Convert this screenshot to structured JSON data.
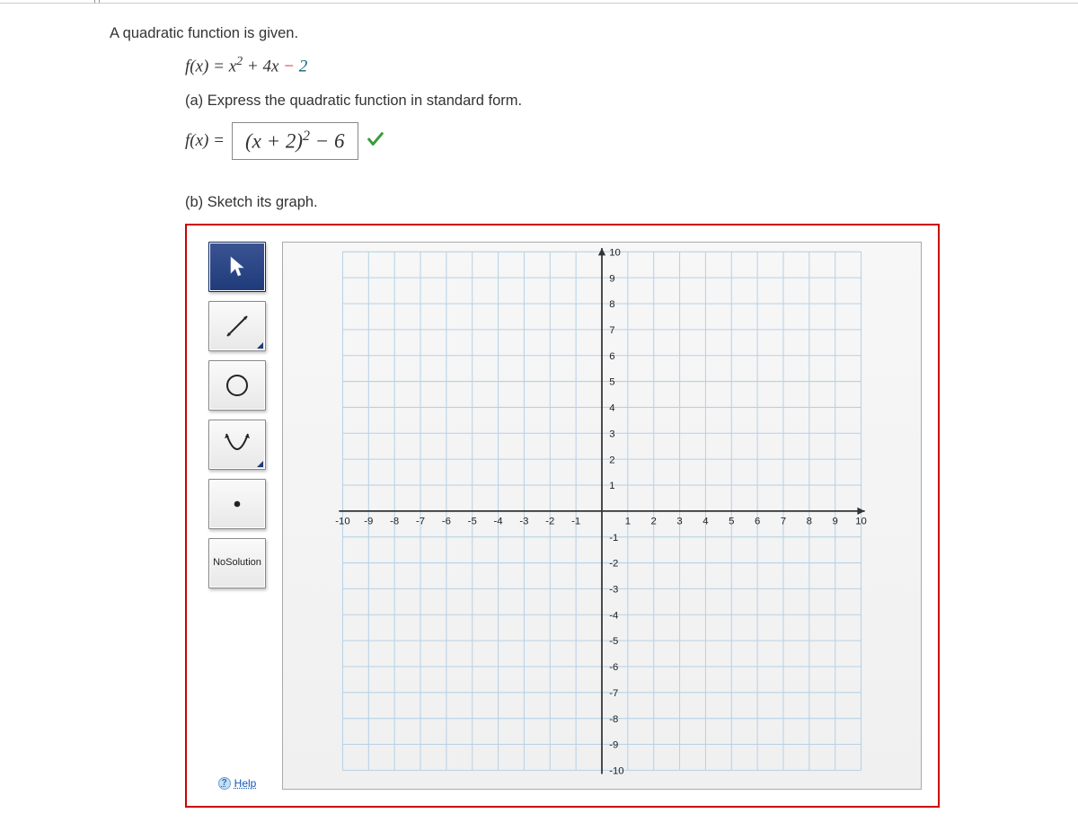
{
  "question": {
    "title": "A quadratic function is given.",
    "equation": {
      "lhs": "f(x) = ",
      "var": "x",
      "exp": "2",
      "linear": " + 4x ",
      "minus": "−",
      "constant": " 2"
    },
    "part_a_label": "(a) Express the quadratic function in standard form.",
    "part_a_answer_prefix": "f(x) = ",
    "part_a_answer": "(x + 2)² − 6",
    "part_a_answer_parts": {
      "open": "(",
      "x": "x",
      "plus": " + 2)",
      "exp": "2",
      "tail": " − 6"
    },
    "checkmark": "✔",
    "part_b_label": "(b) Sketch its graph."
  },
  "toolbar": {
    "tools": [
      {
        "id": "pointer",
        "selected": true
      },
      {
        "id": "line",
        "selected": false,
        "corner": true
      },
      {
        "id": "circle",
        "selected": false
      },
      {
        "id": "parabola",
        "selected": false,
        "corner": true
      },
      {
        "id": "point",
        "selected": false
      }
    ],
    "no_solution_top": "No",
    "no_solution_bottom": "Solution",
    "help": "Help"
  },
  "expand_glyph": "»",
  "graph": {
    "xmin": -10,
    "xmax": 10,
    "ymin": -10,
    "ymax": 10,
    "step": 1,
    "x_ticks": [
      -10,
      -9,
      -8,
      -7,
      -6,
      -5,
      -4,
      -3,
      -2,
      -1,
      1,
      2,
      3,
      4,
      5,
      6,
      7,
      8,
      9,
      10
    ],
    "y_ticks": [
      10,
      9,
      8,
      7,
      6,
      5,
      4,
      3,
      2,
      1,
      -1,
      -2,
      -3,
      -4,
      -5,
      -6,
      -7,
      -8,
      -9,
      -10
    ],
    "grid_color": "#b7d1e6",
    "axis_color": "#333333",
    "bg": "#f4f4f4",
    "margin": 10,
    "cell": 28
  }
}
